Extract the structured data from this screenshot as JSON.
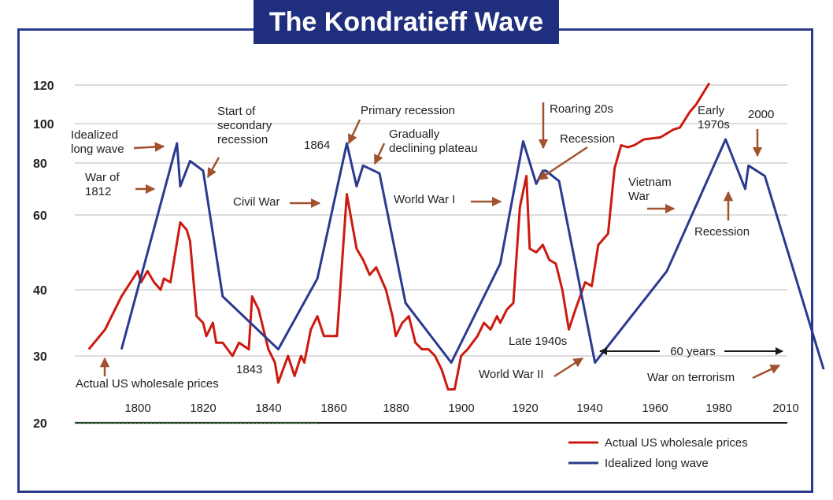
{
  "title": "The Kondratieff Wave",
  "colors": {
    "actual": "#cc1a10",
    "idealized": "#2b3a8f",
    "arrow": "#a0522d",
    "grid": "#c8c8c8"
  },
  "chart_data": {
    "type": "line",
    "title": "The Kondratieff Wave",
    "xlabel": "",
    "ylabel": "",
    "yscale": "log",
    "xlim": [
      1780,
      2010
    ],
    "ylim": [
      20,
      120
    ],
    "xticks": [
      "1800",
      "1820",
      "1840",
      "1860",
      "1880",
      "1900",
      "1920",
      "1940",
      "1960",
      "1980",
      "2010"
    ],
    "yticks": [
      "20",
      "30",
      "40",
      "60",
      "80",
      "100",
      "120"
    ],
    "legend_position": "bottom-right",
    "series": [
      {
        "name": "Actual US wholesale prices",
        "points": [
          [
            1785,
            31
          ],
          [
            1790,
            34
          ],
          [
            1795,
            39
          ],
          [
            1800,
            45
          ],
          [
            1801,
            42
          ],
          [
            1803,
            45
          ],
          [
            1805,
            42
          ],
          [
            1807,
            40
          ],
          [
            1808,
            43
          ],
          [
            1810,
            42
          ],
          [
            1813,
            58
          ],
          [
            1815,
            56
          ],
          [
            1816,
            53
          ],
          [
            1818,
            36
          ],
          [
            1820,
            35
          ],
          [
            1821,
            33
          ],
          [
            1823,
            35
          ],
          [
            1824,
            32
          ],
          [
            1826,
            32
          ],
          [
            1829,
            30
          ],
          [
            1831,
            32
          ],
          [
            1834,
            31
          ],
          [
            1835,
            39
          ],
          [
            1837,
            37
          ],
          [
            1840,
            31
          ],
          [
            1842,
            29
          ],
          [
            1843,
            26
          ],
          [
            1846,
            30
          ],
          [
            1848,
            27
          ],
          [
            1850,
            30
          ],
          [
            1851,
            29
          ],
          [
            1853,
            34
          ],
          [
            1855,
            36
          ],
          [
            1857,
            33
          ],
          [
            1859,
            33
          ],
          [
            1861,
            33
          ],
          [
            1864,
            68
          ],
          [
            1867,
            51
          ],
          [
            1869,
            48
          ],
          [
            1871,
            44
          ],
          [
            1873,
            46
          ],
          [
            1876,
            40
          ],
          [
            1878,
            36
          ],
          [
            1879,
            33
          ],
          [
            1881,
            35
          ],
          [
            1883,
            36
          ],
          [
            1885,
            32
          ],
          [
            1887,
            31
          ],
          [
            1889,
            31
          ],
          [
            1891,
            30
          ],
          [
            1893,
            28
          ],
          [
            1895,
            25
          ],
          [
            1897,
            25
          ],
          [
            1899,
            30
          ],
          [
            1901,
            31
          ],
          [
            1904,
            33
          ],
          [
            1906,
            35
          ],
          [
            1908,
            34
          ],
          [
            1910,
            36
          ],
          [
            1911,
            35
          ],
          [
            1913,
            37
          ],
          [
            1915,
            38
          ],
          [
            1917,
            63
          ],
          [
            1919,
            75
          ],
          [
            1920,
            51
          ],
          [
            1922,
            50
          ],
          [
            1924,
            52
          ],
          [
            1926,
            48
          ],
          [
            1928,
            47
          ],
          [
            1930,
            40
          ],
          [
            1932,
            34
          ],
          [
            1934,
            37
          ],
          [
            1937,
            42
          ],
          [
            1939,
            41
          ],
          [
            1941,
            52
          ],
          [
            1944,
            55
          ],
          [
            1946,
            78
          ],
          [
            1948,
            89
          ],
          [
            1950,
            88
          ],
          [
            1952,
            89
          ],
          [
            1955,
            92
          ],
          [
            1960,
            93
          ],
          [
            1964,
            97
          ],
          [
            1966,
            98
          ],
          [
            1969,
            106
          ],
          [
            1971,
            110
          ],
          [
            1975,
            121
          ]
        ]
      },
      {
        "name": "Idealized long wave",
        "points": [
          [
            1795,
            31
          ],
          [
            1812,
            90
          ],
          [
            1813,
            71
          ],
          [
            1816,
            81
          ],
          [
            1820,
            77
          ],
          [
            1826,
            39
          ],
          [
            1843,
            31
          ],
          [
            1855,
            43
          ],
          [
            1864,
            90
          ],
          [
            1867,
            71
          ],
          [
            1869,
            79
          ],
          [
            1874,
            76
          ],
          [
            1882,
            38
          ],
          [
            1896,
            29
          ],
          [
            1911,
            47
          ],
          [
            1918,
            91
          ],
          [
            1922,
            72
          ],
          [
            1924,
            77
          ],
          [
            1925,
            77
          ],
          [
            1929,
            73
          ],
          [
            1940,
            29
          ],
          [
            1962,
            45
          ],
          [
            1980,
            92
          ],
          [
            1986,
            70
          ],
          [
            1987,
            79
          ],
          [
            1992,
            75
          ],
          [
            2010,
            28
          ]
        ]
      }
    ]
  },
  "annotations": {
    "idealized_long_wave": [
      "Idealized",
      "long wave"
    ],
    "war_1812": [
      "War of",
      "1812"
    ],
    "start_secondary": [
      "Start of",
      "secondary",
      "recession"
    ],
    "year_1864": "1864",
    "primary_recession": "Primary recession",
    "gradually_declining": [
      "Gradually",
      "declining plateau"
    ],
    "civil_war": "Civil War",
    "roaring_20s": "Roaring 20s",
    "recession_1930": "Recession",
    "world_war_1": "World War I",
    "early_1970s": [
      "Early",
      "1970s"
    ],
    "year_2000": "2000",
    "vietnam_war": [
      "Vietnam",
      "War"
    ],
    "recession_1985": "Recession",
    "actual_prices": "Actual US wholesale prices",
    "year_1843": "1843",
    "late_1940s": "Late 1940s",
    "world_war_2": "World War II",
    "sixty_years": "60 years",
    "war_on_terrorism": "War on terrorism"
  }
}
